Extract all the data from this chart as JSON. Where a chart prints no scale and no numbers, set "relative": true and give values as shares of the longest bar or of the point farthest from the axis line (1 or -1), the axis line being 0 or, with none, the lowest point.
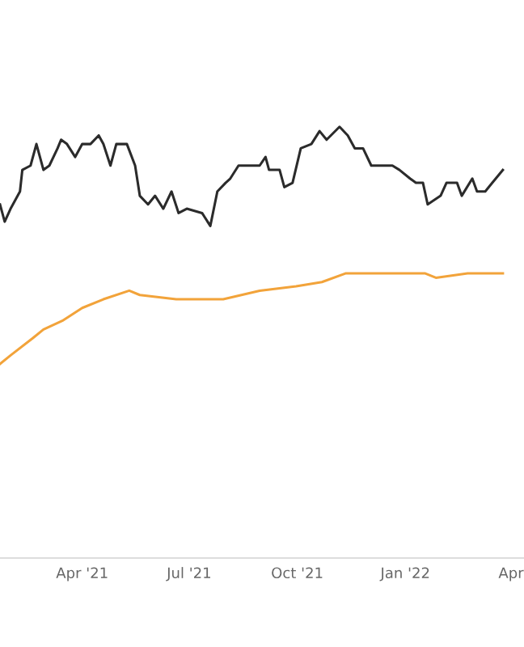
{
  "chart_data": {
    "type": "line",
    "relative": true,
    "xlim": [
      "2021-01-21",
      "2022-04-12"
    ],
    "xticks": [
      {
        "value": "2021-04-01",
        "label": "Apr '21"
      },
      {
        "value": "2021-07-01",
        "label": "Jul '21"
      },
      {
        "value": "2021-10-01",
        "label": "Oct '21"
      },
      {
        "value": "2022-01-01",
        "label": "Jan '22"
      },
      {
        "value": "2022-04-01",
        "label": "Apr"
      }
    ],
    "series": [
      {
        "color": "#2b2b2b",
        "x": [
          "2021-01-21",
          "2021-01-25",
          "2021-01-30",
          "2021-02-07",
          "2021-02-09",
          "2021-02-16",
          "2021-02-21",
          "2021-02-27",
          "2021-03-04",
          "2021-03-11",
          "2021-03-14",
          "2021-03-19",
          "2021-03-26",
          "2021-04-01",
          "2021-04-08",
          "2021-04-15",
          "2021-04-19",
          "2021-04-25",
          "2021-04-30",
          "2021-05-09",
          "2021-05-16",
          "2021-05-20",
          "2021-05-27",
          "2021-06-02",
          "2021-06-09",
          "2021-06-16",
          "2021-06-22",
          "2021-06-29",
          "2021-07-12",
          "2021-07-19",
          "2021-07-25",
          "2021-08-01",
          "2021-08-05",
          "2021-08-12",
          "2021-08-21",
          "2021-08-30",
          "2021-09-04",
          "2021-09-07",
          "2021-09-16",
          "2021-09-20",
          "2021-09-27",
          "2021-10-04",
          "2021-10-13",
          "2021-10-20",
          "2021-10-26",
          "2021-11-06",
          "2021-11-13",
          "2021-11-19",
          "2021-11-26",
          "2021-12-03",
          "2021-12-12",
          "2021-12-21",
          "2021-12-27",
          "2022-01-05",
          "2022-01-10",
          "2022-01-16",
          "2022-01-20",
          "2022-01-31",
          "2022-02-05",
          "2022-02-14",
          "2022-02-18",
          "2022-02-27",
          "2022-03-03",
          "2022-03-10",
          "2022-03-16",
          "2022-03-25"
        ],
        "values": [
          0.82,
          0.78,
          0.81,
          0.85,
          0.9,
          0.91,
          0.96,
          0.9,
          0.91,
          0.95,
          0.97,
          0.96,
          0.93,
          0.96,
          0.96,
          0.98,
          0.96,
          0.91,
          0.96,
          0.96,
          0.91,
          0.84,
          0.82,
          0.84,
          0.81,
          0.85,
          0.8,
          0.81,
          0.8,
          0.77,
          0.85,
          0.87,
          0.88,
          0.91,
          0.91,
          0.91,
          0.93,
          0.9,
          0.9,
          0.86,
          0.87,
          0.95,
          0.96,
          0.99,
          0.97,
          1.0,
          0.98,
          0.95,
          0.95,
          0.91,
          0.91,
          0.91,
          0.9,
          0.88,
          0.87,
          0.87,
          0.82,
          0.84,
          0.87,
          0.87,
          0.84,
          0.88,
          0.85,
          0.85,
          0.87,
          0.9
        ]
      },
      {
        "color": "#f2a33a",
        "x": [
          "2021-01-21",
          "2021-01-30",
          "2021-02-18",
          "2021-02-27",
          "2021-03-15",
          "2021-04-01",
          "2021-04-19",
          "2021-05-11",
          "2021-05-20",
          "2021-06-20",
          "2021-07-08",
          "2021-07-23",
          "2021-07-30",
          "2021-08-30",
          "2021-09-30",
          "2021-10-22",
          "2021-11-11",
          "2021-12-01",
          "2021-12-23",
          "2022-01-18",
          "2022-01-27",
          "2022-02-23",
          "2022-03-25"
        ],
        "values": [
          0.45,
          0.47,
          0.51,
          0.53,
          0.55,
          0.58,
          0.6,
          0.62,
          0.61,
          0.6,
          0.6,
          0.6,
          0.6,
          0.62,
          0.63,
          0.64,
          0.66,
          0.66,
          0.66,
          0.66,
          0.65,
          0.66,
          0.66
        ]
      }
    ]
  }
}
